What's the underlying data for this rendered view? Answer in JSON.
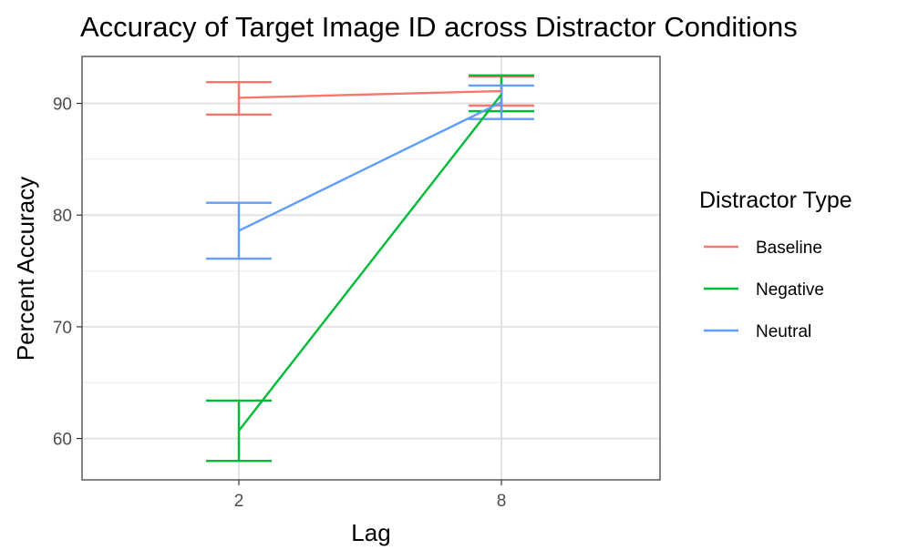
{
  "chart_data": {
    "type": "line",
    "title": "Accuracy of Target Image ID across Distractor Conditions",
    "xlabel": "Lag",
    "ylabel": "Percent Accuracy",
    "x_categories": [
      "2",
      "8"
    ],
    "y_ticks": [
      60,
      70,
      80,
      90
    ],
    "ylim": [
      56.3,
      94.2
    ],
    "grid": true,
    "legend": {
      "title": "Distractor Type",
      "position": "right"
    },
    "series": [
      {
        "name": "Baseline",
        "color": "#F8766D",
        "values": [
          90.5,
          91.1
        ],
        "lower": [
          89.0,
          89.8
        ],
        "upper": [
          91.9,
          92.4
        ]
      },
      {
        "name": "Negative",
        "color": "#00BA38",
        "values": [
          60.7,
          90.8
        ],
        "lower": [
          58.0,
          89.3
        ],
        "upper": [
          63.4,
          92.5
        ]
      },
      {
        "name": "Neutral",
        "color": "#619CFF",
        "values": [
          78.6,
          90.1
        ],
        "lower": [
          76.1,
          88.6
        ],
        "upper": [
          81.1,
          91.6
        ]
      }
    ]
  }
}
